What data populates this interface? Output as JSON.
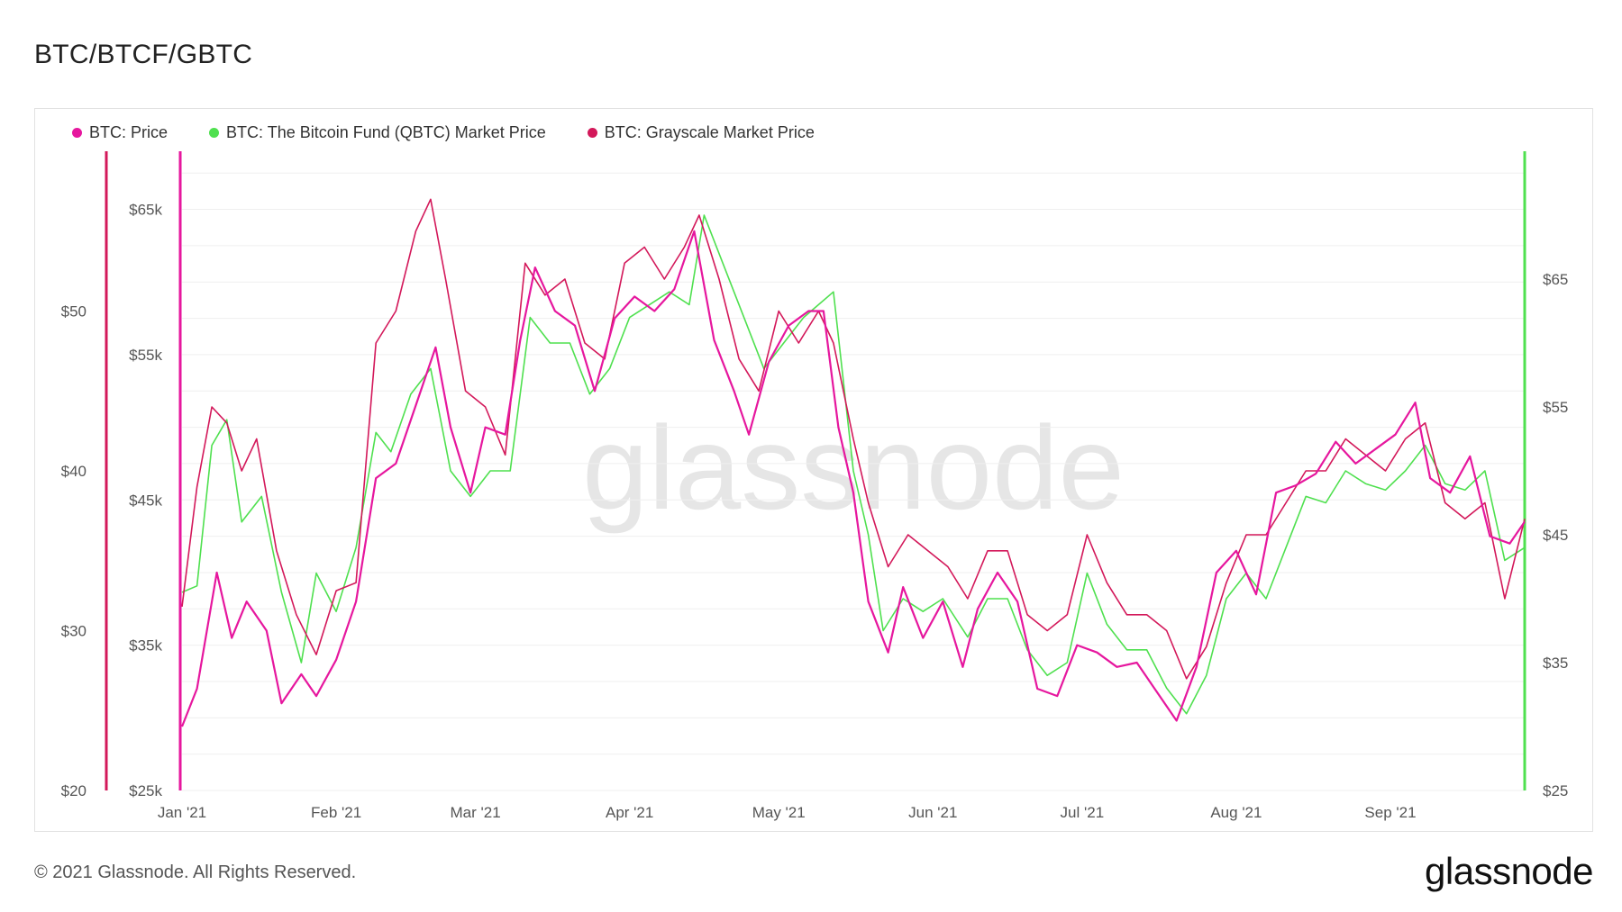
{
  "title": "BTC/BTCF/GBTC",
  "footer": "© 2021 Glassnode. All Rights Reserved.",
  "brand": "glassnode",
  "watermark": "glassnode",
  "legend": [
    {
      "label": "BTC: Price",
      "color": "#e6179e"
    },
    {
      "label": "BTC: The Bitcoin Fund (QBTC) Market Price",
      "color": "#4fe04f"
    },
    {
      "label": "BTC: Grayscale Market Price",
      "color": "#d3185a"
    }
  ],
  "chart_data": {
    "type": "line",
    "x_ticks": [
      "Jan '21",
      "Feb '21",
      "Mar '21",
      "Apr '21",
      "May '21",
      "Jun '21",
      "Jul '21",
      "Aug '21",
      "Sep '21"
    ],
    "axes": {
      "gbtc_outer_left": {
        "ticks": [
          "$20",
          "$30",
          "$40",
          "$50"
        ],
        "values": [
          20,
          30,
          40,
          50
        ],
        "range": [
          20,
          60
        ],
        "color": "#d3185a"
      },
      "btc_inner_left": {
        "ticks": [
          "$25k",
          "$35k",
          "$45k",
          "$55k",
          "$65k"
        ],
        "values": [
          25000,
          35000,
          45000,
          55000,
          65000
        ],
        "range": [
          25000,
          69000
        ],
        "color": "#e6179e"
      },
      "qbtc_right": {
        "ticks": [
          "$25",
          "$35",
          "$45",
          "$55",
          "$65"
        ],
        "values": [
          25,
          35,
          45,
          55,
          65
        ],
        "range": [
          25,
          75
        ],
        "color": "#4fe04f"
      }
    },
    "grid": true,
    "legend_position": "top-left",
    "x_range": [
      "2021-01-01",
      "2021-09-28"
    ],
    "series": [
      {
        "name": "BTC: Price",
        "axis": "btc_inner_left",
        "color": "#e6179e",
        "x": [
          "2021-01-01",
          "2021-01-04",
          "2021-01-08",
          "2021-01-11",
          "2021-01-14",
          "2021-01-18",
          "2021-01-21",
          "2021-01-25",
          "2021-01-28",
          "2021-02-01",
          "2021-02-05",
          "2021-02-09",
          "2021-02-13",
          "2021-02-17",
          "2021-02-21",
          "2021-02-24",
          "2021-02-28",
          "2021-03-03",
          "2021-03-07",
          "2021-03-10",
          "2021-03-13",
          "2021-03-17",
          "2021-03-21",
          "2021-03-25",
          "2021-03-29",
          "2021-04-02",
          "2021-04-06",
          "2021-04-10",
          "2021-04-14",
          "2021-04-18",
          "2021-04-22",
          "2021-04-25",
          "2021-04-29",
          "2021-05-03",
          "2021-05-07",
          "2021-05-10",
          "2021-05-13",
          "2021-05-16",
          "2021-05-19",
          "2021-05-23",
          "2021-05-26",
          "2021-05-30",
          "2021-06-03",
          "2021-06-07",
          "2021-06-10",
          "2021-06-14",
          "2021-06-18",
          "2021-06-22",
          "2021-06-26",
          "2021-06-30",
          "2021-07-04",
          "2021-07-08",
          "2021-07-12",
          "2021-07-16",
          "2021-07-20",
          "2021-07-24",
          "2021-07-28",
          "2021-08-01",
          "2021-08-05",
          "2021-08-09",
          "2021-08-13",
          "2021-08-17",
          "2021-08-21",
          "2021-08-25",
          "2021-08-29",
          "2021-09-02",
          "2021-09-06",
          "2021-09-09",
          "2021-09-13",
          "2021-09-17",
          "2021-09-21",
          "2021-09-25",
          "2021-09-28"
        ],
        "y": [
          29400,
          32000,
          40000,
          35500,
          38000,
          36000,
          31000,
          33000,
          31500,
          34000,
          38000,
          46500,
          47500,
          51500,
          55500,
          50000,
          45500,
          50000,
          49500,
          56000,
          61000,
          58000,
          57000,
          52500,
          57500,
          59000,
          58000,
          59500,
          63500,
          56000,
          52500,
          49500,
          54500,
          57000,
          58000,
          58000,
          50000,
          45500,
          38000,
          34500,
          39000,
          35500,
          38000,
          33500,
          37500,
          40000,
          38000,
          32000,
          31500,
          35000,
          34500,
          33500,
          33800,
          31800,
          29800,
          33500,
          40000,
          41500,
          38500,
          45500,
          46000,
          46800,
          49000,
          47500,
          48500,
          49500,
          51700,
          46500,
          45500,
          48000,
          42500,
          42000,
          43500
        ]
      },
      {
        "name": "BTC: The Bitcoin Fund (QBTC) Market Price",
        "axis": "qbtc_right",
        "color": "#4fe04f",
        "x": [
          "2021-01-01",
          "2021-01-04",
          "2021-01-07",
          "2021-01-10",
          "2021-01-13",
          "2021-01-17",
          "2021-01-21",
          "2021-01-25",
          "2021-01-28",
          "2021-02-01",
          "2021-02-05",
          "2021-02-09",
          "2021-02-12",
          "2021-02-16",
          "2021-02-20",
          "2021-02-24",
          "2021-02-28",
          "2021-03-04",
          "2021-03-08",
          "2021-03-12",
          "2021-03-16",
          "2021-03-20",
          "2021-03-24",
          "2021-03-28",
          "2021-04-01",
          "2021-04-05",
          "2021-04-09",
          "2021-04-13",
          "2021-04-16",
          "2021-04-20",
          "2021-04-24",
          "2021-04-28",
          "2021-05-02",
          "2021-05-06",
          "2021-05-09",
          "2021-05-12",
          "2021-05-16",
          "2021-05-19",
          "2021-05-22",
          "2021-05-26",
          "2021-05-30",
          "2021-06-03",
          "2021-06-08",
          "2021-06-12",
          "2021-06-16",
          "2021-06-20",
          "2021-06-24",
          "2021-06-28",
          "2021-07-02",
          "2021-07-06",
          "2021-07-10",
          "2021-07-14",
          "2021-07-18",
          "2021-07-22",
          "2021-07-26",
          "2021-07-30",
          "2021-08-03",
          "2021-08-07",
          "2021-08-11",
          "2021-08-15",
          "2021-08-19",
          "2021-08-23",
          "2021-08-27",
          "2021-08-31",
          "2021-09-04",
          "2021-09-08",
          "2021-09-12",
          "2021-09-16",
          "2021-09-20",
          "2021-09-24",
          "2021-09-28"
        ],
        "y": [
          40.5,
          41,
          52,
          54,
          46,
          48,
          40.5,
          35,
          42,
          39,
          44,
          53,
          51.5,
          56,
          58,
          50,
          48,
          50,
          50,
          62,
          60,
          60,
          56,
          58,
          62,
          63,
          64,
          63,
          70,
          66,
          62,
          58,
          60,
          62,
          63,
          64,
          50,
          45,
          37.5,
          40,
          39,
          40,
          37,
          40,
          40,
          36,
          34,
          35,
          42,
          38,
          36,
          36,
          33,
          31,
          34,
          40,
          42,
          40,
          44,
          48,
          47.5,
          50,
          49,
          48.5,
          50,
          52,
          49,
          48.5,
          50,
          43,
          44
        ]
      },
      {
        "name": "BTC: Grayscale Market Price",
        "axis": "gbtc_outer_left",
        "color": "#d3185a",
        "x": [
          "2021-01-01",
          "2021-01-04",
          "2021-01-07",
          "2021-01-10",
          "2021-01-13",
          "2021-01-16",
          "2021-01-20",
          "2021-01-24",
          "2021-01-28",
          "2021-02-01",
          "2021-02-05",
          "2021-02-09",
          "2021-02-13",
          "2021-02-17",
          "2021-02-20",
          "2021-02-23",
          "2021-02-27",
          "2021-03-03",
          "2021-03-07",
          "2021-03-11",
          "2021-03-15",
          "2021-03-19",
          "2021-03-23",
          "2021-03-27",
          "2021-03-31",
          "2021-04-04",
          "2021-04-08",
          "2021-04-12",
          "2021-04-15",
          "2021-04-19",
          "2021-04-23",
          "2021-04-27",
          "2021-05-01",
          "2021-05-05",
          "2021-05-09",
          "2021-05-12",
          "2021-05-16",
          "2021-05-19",
          "2021-05-23",
          "2021-05-27",
          "2021-05-31",
          "2021-06-04",
          "2021-06-08",
          "2021-06-12",
          "2021-06-16",
          "2021-06-20",
          "2021-06-24",
          "2021-06-28",
          "2021-07-02",
          "2021-07-06",
          "2021-07-10",
          "2021-07-14",
          "2021-07-18",
          "2021-07-22",
          "2021-07-26",
          "2021-07-30",
          "2021-08-03",
          "2021-08-07",
          "2021-08-11",
          "2021-08-15",
          "2021-08-19",
          "2021-08-23",
          "2021-08-27",
          "2021-08-31",
          "2021-09-04",
          "2021-09-08",
          "2021-09-12",
          "2021-09-16",
          "2021-09-20",
          "2021-09-24",
          "2021-09-28"
        ],
        "y": [
          31.5,
          39,
          44,
          43,
          40,
          42,
          35,
          31,
          28.5,
          32.5,
          33,
          48,
          50,
          55,
          57,
          52,
          45,
          44,
          41,
          53,
          51,
          52,
          48,
          47,
          53,
          54,
          52,
          54,
          56,
          52,
          47,
          45,
          50,
          48,
          50,
          48,
          42,
          38,
          34,
          36,
          35,
          34,
          32,
          35,
          35,
          31,
          30,
          31,
          36,
          33,
          31,
          31,
          30,
          27,
          29,
          33,
          36,
          36,
          38,
          40,
          40,
          42,
          41,
          40,
          42,
          43,
          38,
          37,
          38,
          32,
          37
        ]
      }
    ]
  }
}
